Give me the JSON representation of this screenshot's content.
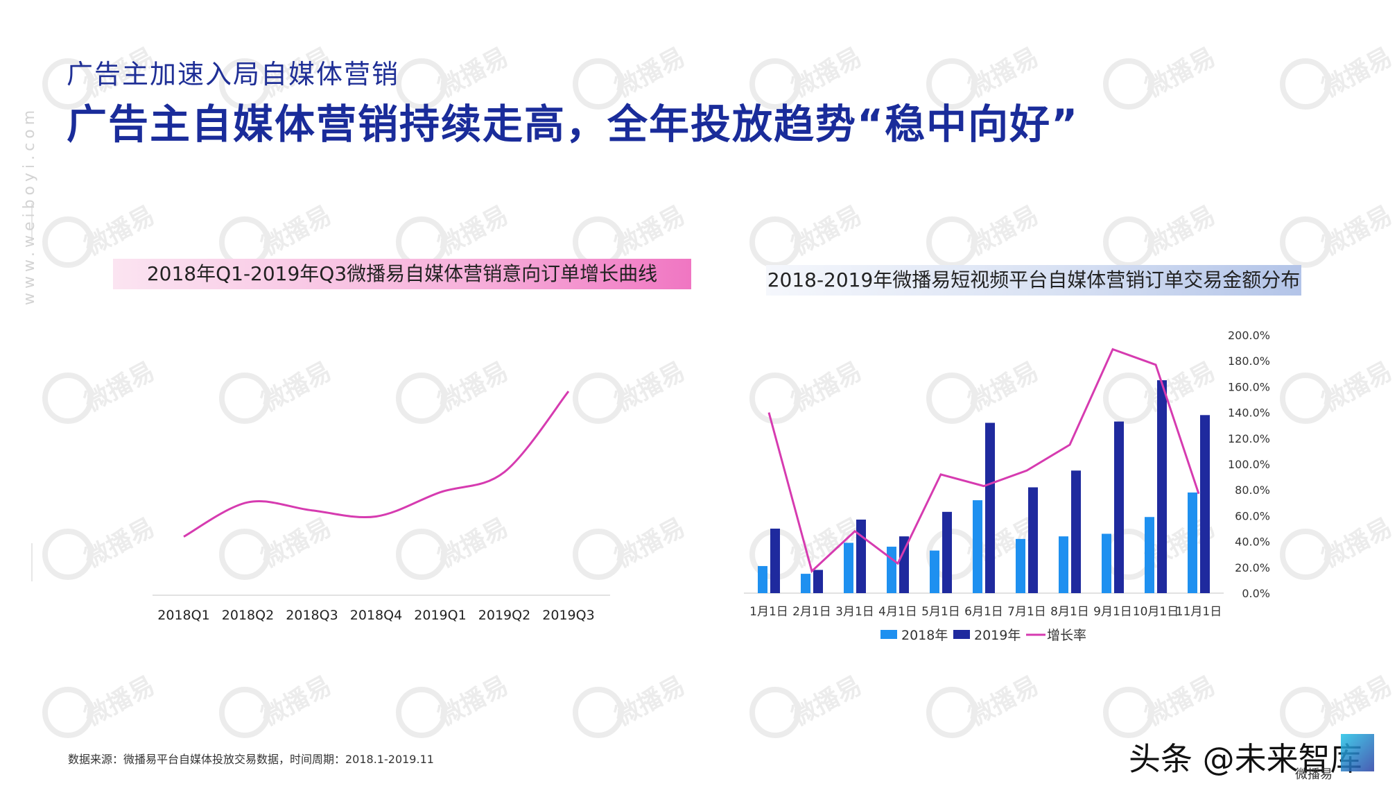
{
  "header": {
    "subtitle": "广告主加速入局自媒体营销",
    "title": "广告主自媒体营销持续走高，全年投放趋势“稳中向好”"
  },
  "watermark": {
    "text": "微播易",
    "side_url": "www.weiboyi.com",
    "color": "#777777"
  },
  "colors": {
    "title": "#1a2c9a",
    "line_pink": "#d63bb0",
    "bar_2018": "#1e90f0",
    "bar_2019": "#1f2a9e",
    "growth_line": "#d63bb0"
  },
  "chart_data": [
    {
      "type": "line",
      "title": "2018年Q1-2019年Q3微播易自媒体营销意向订单增长曲线",
      "categories": [
        "2018Q1",
        "2018Q2",
        "2018Q3",
        "2018Q4",
        "2019Q1",
        "2019Q2",
        "2019Q3"
      ],
      "series": [
        {
          "values": [
            28,
            45,
            41,
            38,
            50,
            60,
            100
          ]
        }
      ],
      "ylim": [
        0,
        110
      ],
      "grid": false,
      "smooth": true
    },
    {
      "type": "bar",
      "title": "2018-2019年微播易短视频平台自媒体营销订单交易金额分布",
      "categories": [
        "1月1日",
        "2月1日",
        "3月1日",
        "4月1日",
        "5月1日",
        "6月1日",
        "7月1日",
        "8月1日",
        "9月1日",
        "10月1日",
        "11月1日"
      ],
      "series": [
        {
          "name": "2018年",
          "values": [
            21,
            15,
            39,
            36,
            33,
            72,
            42,
            44,
            46,
            59,
            78
          ]
        },
        {
          "name": "2019年",
          "values": [
            50,
            18,
            57,
            44,
            63,
            132,
            82,
            95,
            133,
            165,
            138
          ]
        },
        {
          "name": "增长率",
          "type": "line",
          "axis": "right",
          "values": [
            140,
            17,
            48,
            23,
            92,
            83,
            95,
            115,
            189,
            177,
            77
          ]
        }
      ],
      "ylim": [
        0,
        200
      ],
      "y2_ticks": [
        "0.0%",
        "20.0%",
        "40.0%",
        "60.0%",
        "80.0%",
        "100.0%",
        "120.0%",
        "140.0%",
        "160.0%",
        "180.0%",
        "200.0%"
      ],
      "y2lim": [
        0,
        200
      ],
      "legend": "bottom",
      "grid": false
    }
  ],
  "footer": {
    "source": "数据来源：微播易平台自媒体投放交易数据，时间周期：2018.1-2019.11",
    "brand": "头条 @未来智库",
    "brand_small": "微播易"
  }
}
